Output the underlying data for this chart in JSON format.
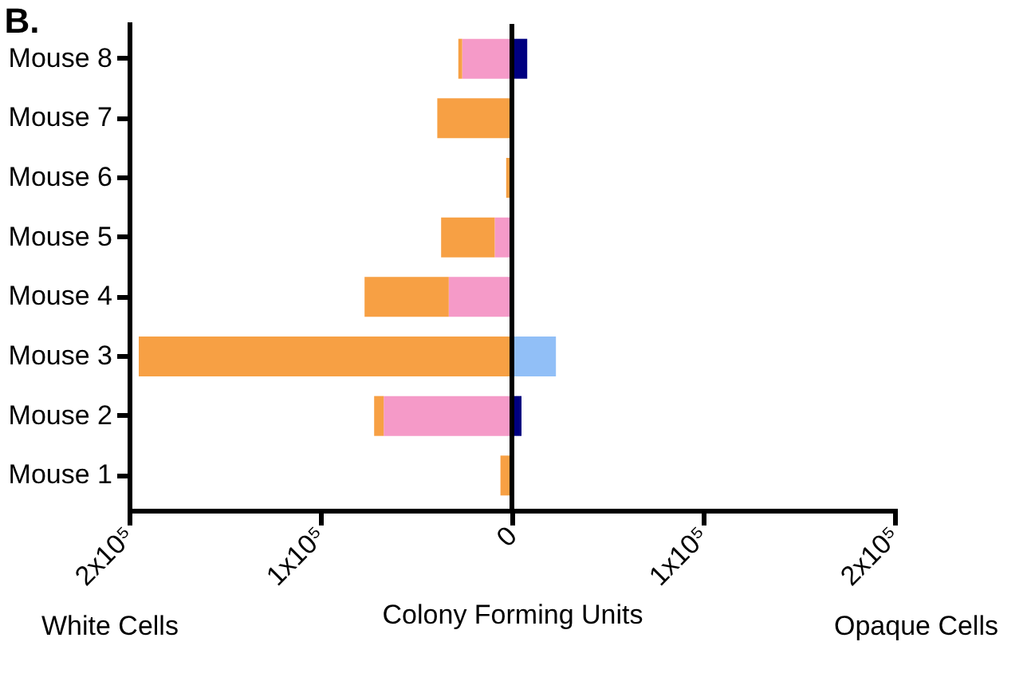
{
  "chart_data": {
    "type": "bar",
    "orientation": "horizontal",
    "stacked": true,
    "title": "B.",
    "xlabel": "Colony Forming Units",
    "annotations": [
      "White Cells",
      "Opaque Cells"
    ],
    "categories": [
      "Mouse 8",
      "Mouse 7",
      "Mouse 6",
      "Mouse 5",
      "Mouse 4",
      "Mouse 3",
      "Mouse 2",
      "Mouse 1"
    ],
    "series": [
      {
        "color": "#f59ac8",
        "values": [
          -26000,
          0,
          0,
          -9000,
          -33000,
          0,
          -67000,
          0
        ]
      },
      {
        "color": "#f7a044",
        "values": [
          -2000,
          -39000,
          -3000,
          -28000,
          -44000,
          -195000,
          -5000,
          -6000
        ]
      },
      {
        "color": "#000080",
        "values": [
          8000,
          0,
          0,
          0,
          0,
          0,
          5000,
          0
        ]
      },
      {
        "color": "#91bff7",
        "values": [
          0,
          0,
          0,
          0,
          0,
          23000,
          0,
          0
        ]
      }
    ],
    "xlim": [
      -200000,
      200000
    ],
    "xticks": [
      {
        "value": -200000,
        "label": "2x10⁵"
      },
      {
        "value": -100000,
        "label": "1x10⁵"
      },
      0,
      {
        "value": 100000,
        "label": "1x10⁵"
      },
      {
        "value": 200000,
        "label": "2x10⁵"
      }
    ],
    "ref_lines": [
      {
        "axis": "x",
        "value": 0,
        "color": "#000000"
      }
    ],
    "grid": false,
    "legend": false
  }
}
